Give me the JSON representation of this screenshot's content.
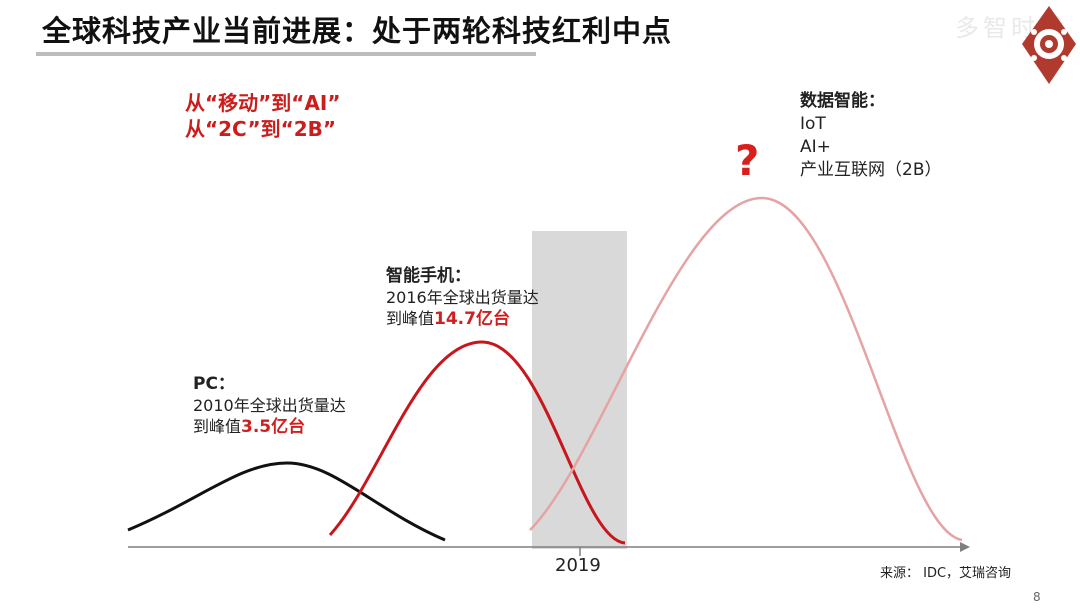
{
  "slide": {
    "title": "全球科技产业当前进展：处于两轮科技红利中点",
    "watermark": "多智时代",
    "page_number": "8",
    "source": "来源：  IDC，艾瑞咨询"
  },
  "shift_text": [
    "从“移动”到“AI”",
    "从“2C”到“2B”"
  ],
  "eras": [
    {
      "name": "PC：",
      "desc_prefix": "2010年全球出货量达",
      "desc_line2_prefix": "到峰值",
      "highlight": "3.5亿台",
      "color": "#111111"
    },
    {
      "name": "智能手机：",
      "desc_prefix": "2016年全球出货量达",
      "desc_line2_prefix": "到峰值",
      "highlight": "14.7亿台",
      "color": "#c8161d"
    },
    {
      "name": "数据智能：",
      "items": [
        "IoT",
        "AI+",
        "产业互联网（2B）"
      ],
      "color": "#e6a3a3"
    }
  ],
  "marker": {
    "year": "2019",
    "band_color": "#d9d9d9"
  },
  "question_mark": "?"
}
